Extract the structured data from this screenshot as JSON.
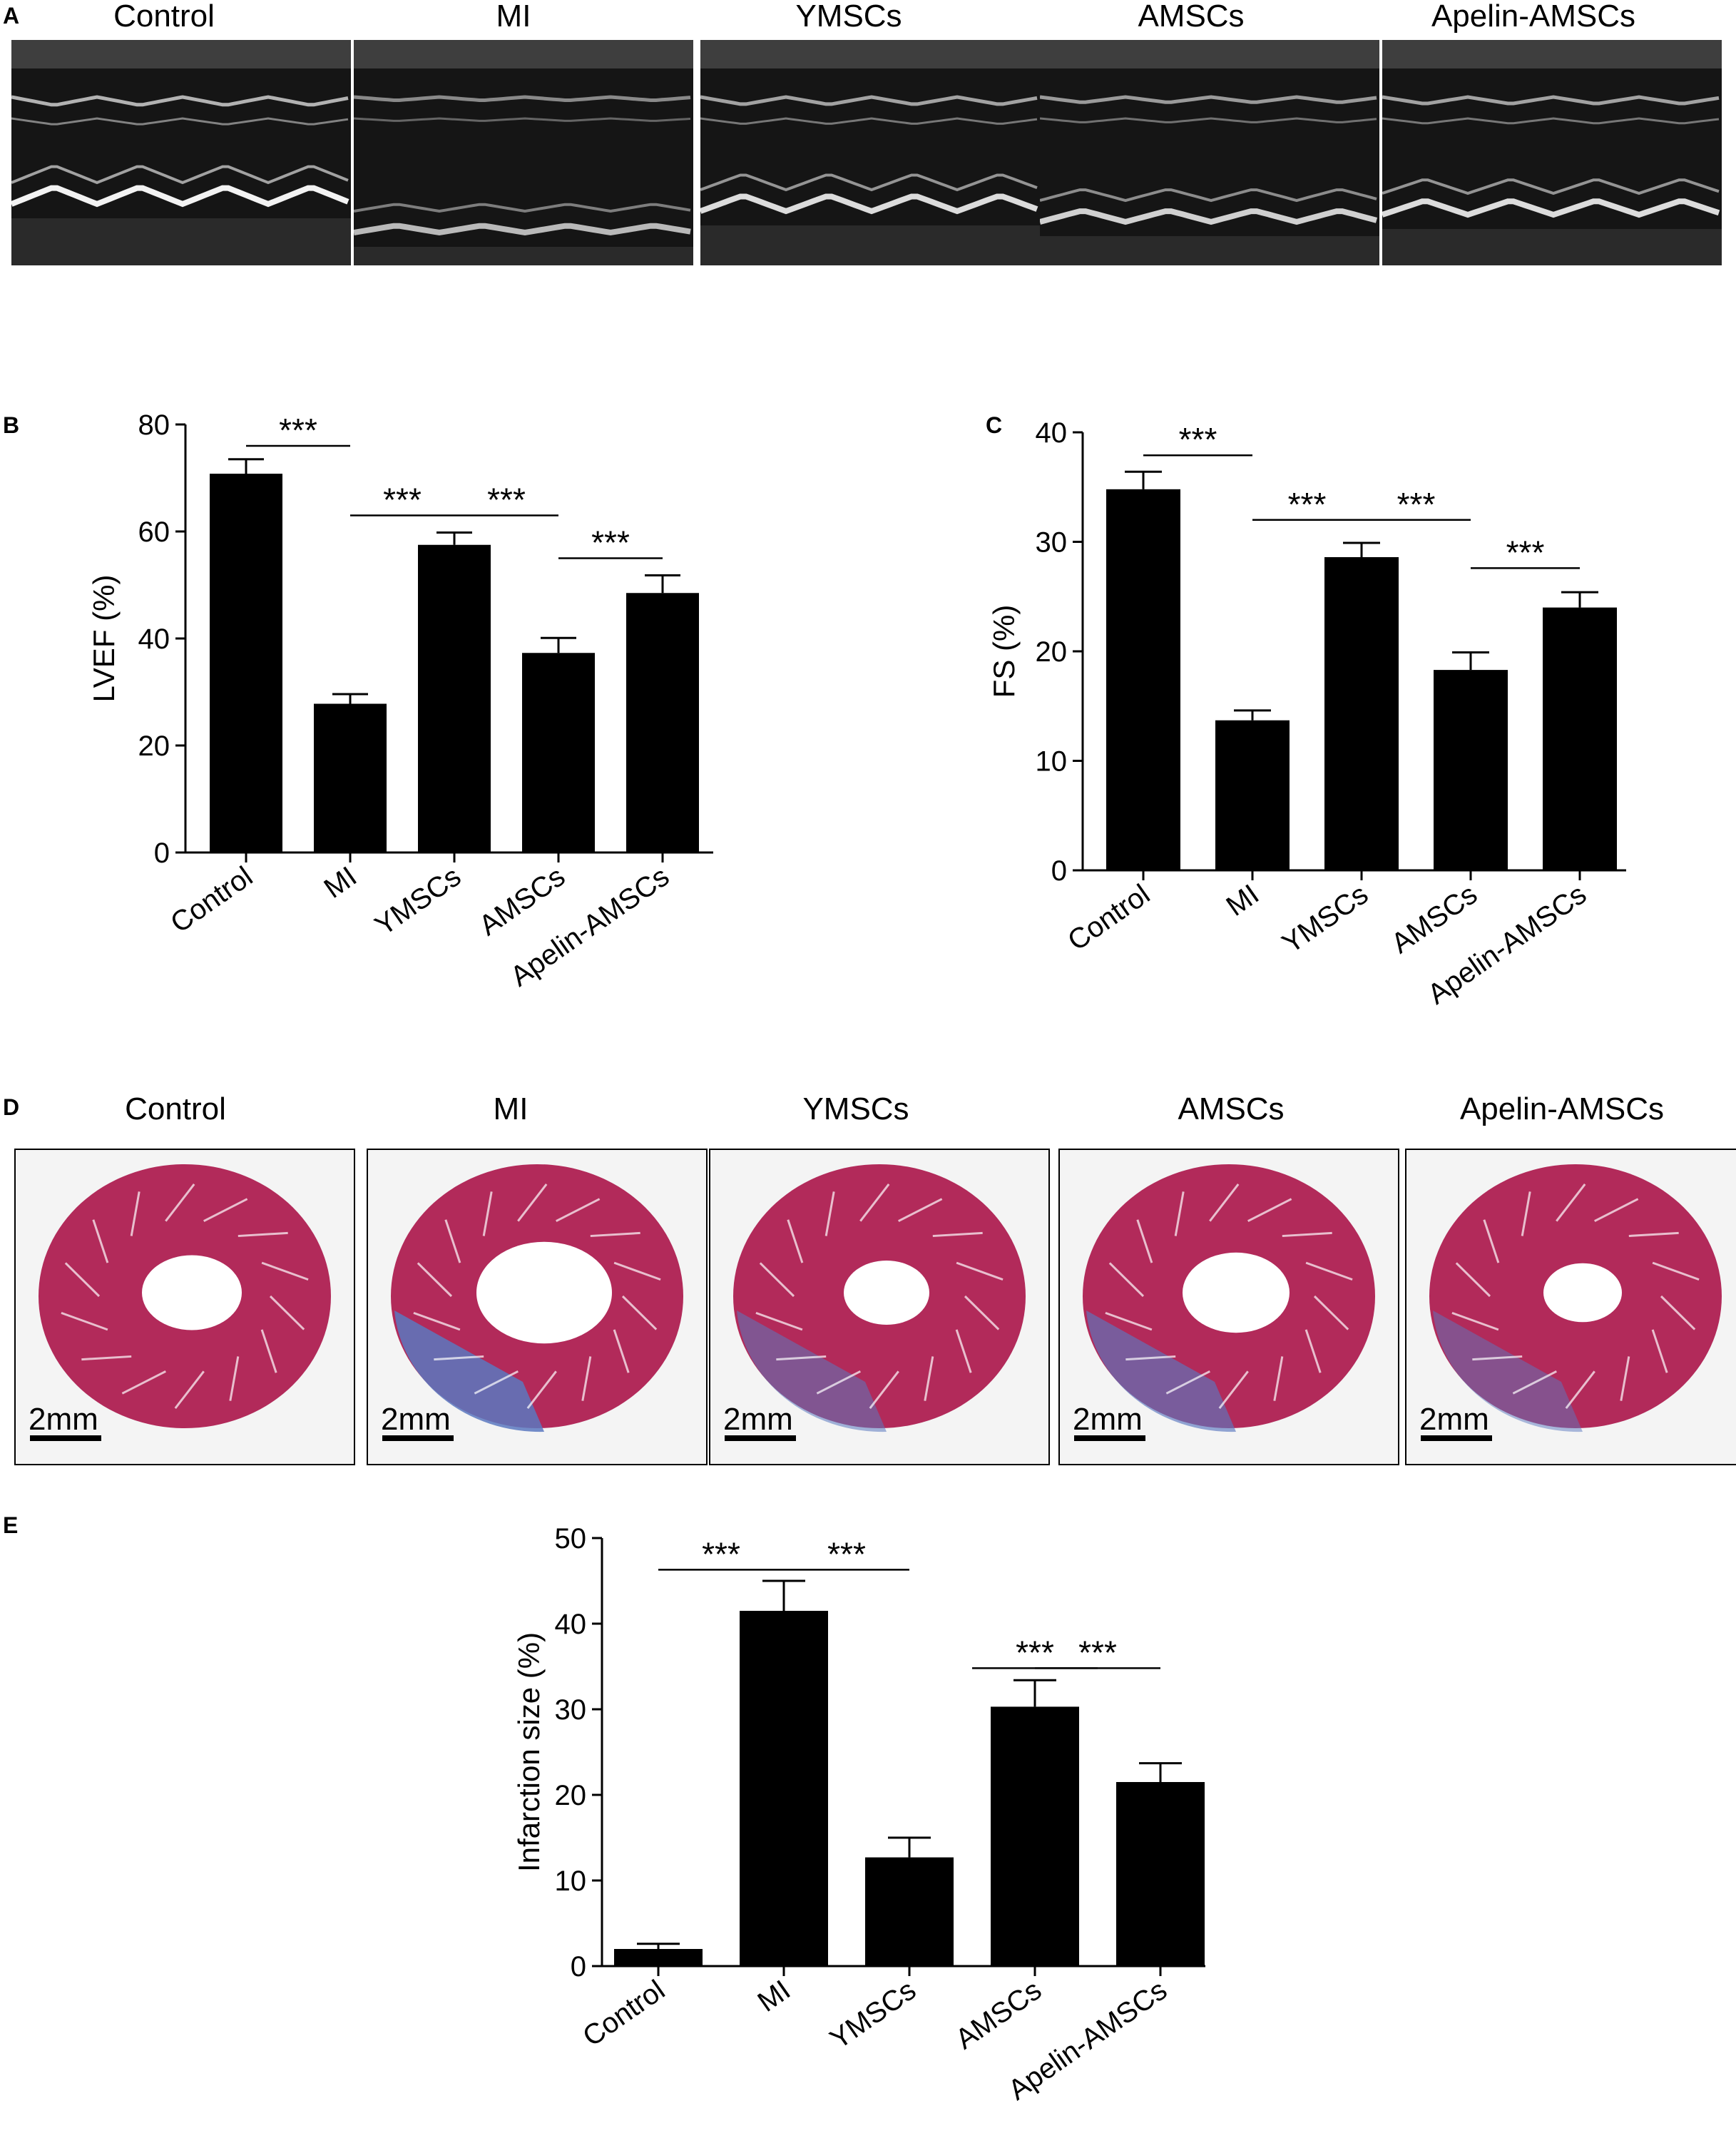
{
  "panels": {
    "a": "A",
    "b": "B",
    "c": "C",
    "d": "D",
    "e": "E"
  },
  "groups": [
    "Control",
    "MI",
    "YMSCs",
    "AMSCs",
    "Apelin-AMSCs"
  ],
  "scale_bar": "2mm",
  "colors": {
    "bar": "#000000",
    "tissue": "#b22a5a",
    "fibrosis": "#5a78c0",
    "echo_bg": "#151515"
  },
  "chart_data": [
    {
      "type": "bar",
      "panel": "B",
      "categories": [
        "Control",
        "MI",
        "YMSCs",
        "AMSCs",
        "Apelin-AMSCs"
      ],
      "values": [
        70.8,
        27.8,
        57.5,
        37.3,
        48.5
      ],
      "errors": [
        2.7,
        1.8,
        2.3,
        2.8,
        3.3
      ],
      "ylabel": "LVEF (%)",
      "ylim": [
        0,
        80
      ],
      "yticks": [
        0,
        20,
        40,
        60,
        80
      ],
      "significance": [
        {
          "from": 0,
          "to": 1,
          "label": "***",
          "y": 76
        },
        {
          "from": 1,
          "to": 2,
          "label": "***",
          "y": 63
        },
        {
          "from": 2,
          "to": 3,
          "label": "***",
          "y": 63
        },
        {
          "from": 3,
          "to": 4,
          "label": "***",
          "y": 55
        }
      ]
    },
    {
      "type": "bar",
      "panel": "C",
      "categories": [
        "Control",
        "MI",
        "YMSCs",
        "AMSCs",
        "Apelin-AMSCs"
      ],
      "values": [
        34.8,
        13.7,
        28.6,
        18.3,
        24.0
      ],
      "errors": [
        1.6,
        0.9,
        1.3,
        1.6,
        1.4
      ],
      "ylabel": "FS (%)",
      "ylim": [
        0,
        40
      ],
      "yticks": [
        0,
        10,
        20,
        30,
        40
      ],
      "significance": [
        {
          "from": 0,
          "to": 1,
          "label": "***",
          "y": 37.9
        },
        {
          "from": 1,
          "to": 2,
          "label": "***",
          "y": 32
        },
        {
          "from": 2,
          "to": 3,
          "label": "***",
          "y": 32
        },
        {
          "from": 3,
          "to": 4,
          "label": "***",
          "y": 27.6
        }
      ]
    },
    {
      "type": "bar",
      "panel": "E",
      "categories": [
        "Control",
        "MI",
        "YMSCs",
        "AMSCs",
        "Apelin-AMSCs"
      ],
      "values": [
        2.0,
        41.5,
        12.7,
        30.3,
        21.5
      ],
      "errors": [
        0.6,
        3.5,
        2.3,
        3.1,
        2.2
      ],
      "ylabel": "Infarction size (%)",
      "ylim": [
        0,
        50
      ],
      "yticks": [
        0,
        10,
        20,
        30,
        40,
        50
      ],
      "significance": [
        {
          "from": 0,
          "to": 1,
          "label": "***",
          "y": 46.3
        },
        {
          "from": 1,
          "to": 2,
          "label": "***",
          "y": 46.3
        },
        {
          "from": 2.5,
          "to": 3.5,
          "label": "***",
          "y": 34.8
        },
        {
          "from": 3,
          "to": 4,
          "label": "***",
          "y": 34.8
        }
      ]
    }
  ]
}
